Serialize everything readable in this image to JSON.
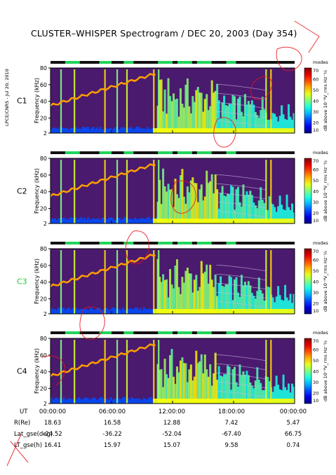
{
  "title": "CLUSTER–WHISPER Spectrogram / DEC 20, 2003 (Day 354)",
  "side_label": "LPCE/CNRS - Jul 20, 2010",
  "colors": {
    "c3_label": "#21c43b",
    "annotation": "#e8141b"
  },
  "chart_data": {
    "type": "heatmap",
    "panels": [
      {
        "name": "C1",
        "ylabel": "Frequency (kHz)",
        "yticks": [
          "2",
          "20",
          "40",
          "60",
          "80"
        ],
        "ylim": [
          2,
          80
        ],
        "colorbar_label": "dB above 10⁻⁸V_rms Hz⁻½",
        "colorbar_ticks": [
          "10",
          "20",
          "30",
          "40",
          "50",
          "60",
          "70"
        ]
      },
      {
        "name": "C2",
        "ylabel": "Frequency (kHz)",
        "yticks": [
          "2",
          "20",
          "40",
          "60",
          "80"
        ],
        "ylim": [
          2,
          80
        ],
        "colorbar_label": "dB above 10⁻⁸V_rms Hz⁻½",
        "colorbar_ticks": [
          "10",
          "20",
          "30",
          "40",
          "50",
          "60",
          "70"
        ]
      },
      {
        "name": "C3",
        "ylabel": "Frequency (kHz)",
        "yticks": [
          "2",
          "20",
          "40",
          "60",
          "80"
        ],
        "ylim": [
          2,
          80
        ],
        "colorbar_label": "dB above 10⁻⁸V_rms Hz⁻½",
        "colorbar_ticks": [
          "10",
          "20",
          "30",
          "40",
          "50",
          "60",
          "70"
        ]
      },
      {
        "name": "C4",
        "ylabel": "Frequency (kHz)",
        "yticks": [
          "2",
          "20",
          "40",
          "60",
          "80"
        ],
        "ylim": [
          2,
          80
        ],
        "colorbar_label": "dB above 10⁻⁸V_rms Hz⁻½",
        "colorbar_ticks": [
          "10",
          "20",
          "30",
          "40",
          "50",
          "60",
          "70"
        ]
      }
    ],
    "colorbar_range": [
      10,
      70
    ],
    "mode_bar_label": "modes",
    "x_tick_labels": [
      "00:00:00",
      "06:00:00",
      "12:00:00",
      "18:00:00",
      "00:00:00"
    ],
    "orbit_table": {
      "rows": [
        {
          "label": "UT",
          "values": [
            "00:00:00",
            "06:00:00",
            "12:00:00",
            "18:00:00",
            "00:00:00"
          ]
        },
        {
          "label": "R(Re)",
          "values": [
            "18.63",
            "16.58",
            "12.88",
            "7.42",
            "5.47"
          ]
        },
        {
          "label": "Lat_gse(deg)",
          "values": [
            "-24.52",
            "-36.22",
            "-52.04",
            "-67.40",
            "66.75"
          ]
        },
        {
          "label": "LT_gse(h)",
          "values": [
            "16.41",
            "15.97",
            "15.07",
            "9.58",
            "0.74"
          ]
        }
      ]
    }
  }
}
